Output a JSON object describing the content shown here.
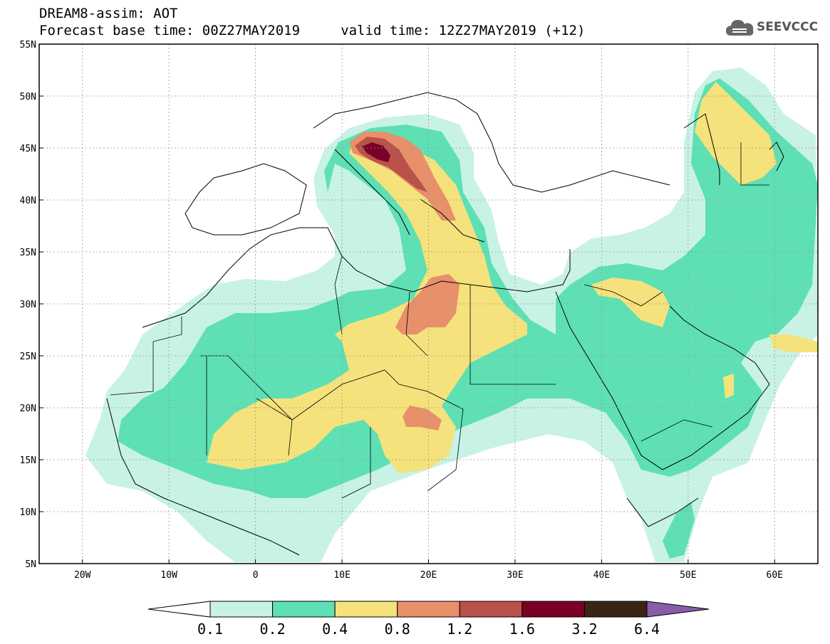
{
  "header": {
    "title_line1": "DREAM8-assim: AOT",
    "title_line2": "Forecast base time: 00Z27MAY2019     valid time: 12Z27MAY2019 (+12)"
  },
  "logo": {
    "text": "SEEVCCC",
    "icon": "cloud-icon",
    "color": "#555555"
  },
  "map": {
    "lat_labels": [
      "55N",
      "50N",
      "45N",
      "40N",
      "35N",
      "30N",
      "25N",
      "20N",
      "15N",
      "10N",
      "5N"
    ],
    "lat_values": [
      55,
      50,
      45,
      40,
      35,
      30,
      25,
      20,
      15,
      10,
      5
    ],
    "lon_labels": [
      "20W",
      "10W",
      "0",
      "10E",
      "20E",
      "30E",
      "40E",
      "50E",
      "60E"
    ],
    "lon_values": [
      -20,
      -10,
      0,
      10,
      20,
      30,
      40,
      50,
      60
    ],
    "extent": {
      "lon_min": -25,
      "lon_max": 65,
      "lat_min": 5,
      "lat_max": 55
    },
    "grid": "dotted",
    "field": "AOT"
  },
  "colorbar": {
    "labels": [
      "0.1",
      "0.2",
      "0.4",
      "0.8",
      "1.2",
      "1.6",
      "3.2",
      "6.4"
    ],
    "colors": [
      "#ffffff",
      "#c8f2e6",
      "#5ee0b4",
      "#f5e27c",
      "#e8906a",
      "#b8524a",
      "#7a0026",
      "#3a2414",
      "#8a5ca8"
    ]
  }
}
